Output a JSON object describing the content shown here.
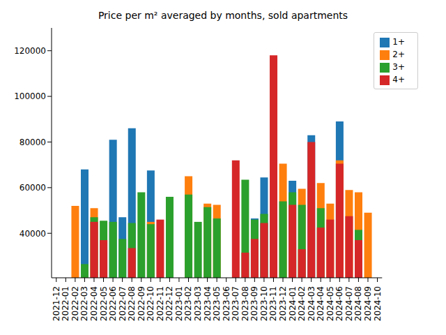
{
  "chart_data": {
    "type": "bar",
    "title": "Price per m² averaged by months, sold apartments",
    "categories": [
      "2021-12",
      "2022-01",
      "2022-02",
      "2022-03",
      "2022-04",
      "2022-05",
      "2022-06",
      "2022-07",
      "2022-08",
      "2022-09",
      "2022-10",
      "2022-11",
      "2022-12",
      "2023-01",
      "2023-02",
      "2023-03",
      "2023-04",
      "2023-05",
      "2023-06",
      "2023-07",
      "2023-08",
      "2023-09",
      "2023-10",
      "2023-11",
      "2023-12",
      "2024-01",
      "2024-02",
      "2024-03",
      "2024-04",
      "2024-05",
      "2024-06",
      "2024-07",
      "2024-08",
      "2024-09",
      "2024-10"
    ],
    "series": [
      {
        "name": "1+",
        "color": "#1f77b4",
        "values": [
          null,
          null,
          null,
          68000,
          null,
          null,
          81000,
          47000,
          86000,
          null,
          67500,
          null,
          null,
          null,
          null,
          null,
          null,
          null,
          null,
          null,
          null,
          46500,
          64500,
          null,
          null,
          63000,
          null,
          83000,
          null,
          null,
          89000,
          null,
          null,
          null,
          null
        ]
      },
      {
        "name": "2+",
        "color": "#ff7f0e",
        "values": [
          null,
          null,
          52000,
          null,
          51000,
          null,
          null,
          null,
          null,
          null,
          45000,
          null,
          null,
          null,
          65000,
          null,
          53000,
          52500,
          null,
          null,
          null,
          null,
          null,
          null,
          70500,
          null,
          59500,
          null,
          62000,
          53000,
          72000,
          59000,
          58000,
          49000,
          null
        ]
      },
      {
        "name": "3+",
        "color": "#2ca02c",
        "values": [
          null,
          null,
          null,
          26500,
          47000,
          45500,
          45000,
          37500,
          44500,
          58000,
          44000,
          null,
          56000,
          null,
          57000,
          45000,
          51500,
          46500,
          null,
          null,
          63500,
          46000,
          48500,
          null,
          54000,
          58000,
          52500,
          null,
          51000,
          null,
          null,
          null,
          41500,
          null,
          null
        ]
      },
      {
        "name": "4+",
        "color": "#d62728",
        "values": [
          null,
          null,
          null,
          null,
          45000,
          37000,
          null,
          null,
          33500,
          null,
          null,
          46000,
          null,
          null,
          null,
          null,
          null,
          null,
          null,
          72000,
          31500,
          37500,
          44500,
          118000,
          null,
          52500,
          33000,
          80000,
          42500,
          46000,
          70500,
          47500,
          37000,
          null,
          null
        ]
      }
    ],
    "ylim": [
      20500,
      130000
    ],
    "yticks": [
      40000,
      60000,
      80000,
      100000,
      120000
    ],
    "grid": false,
    "legend": "upper right"
  }
}
